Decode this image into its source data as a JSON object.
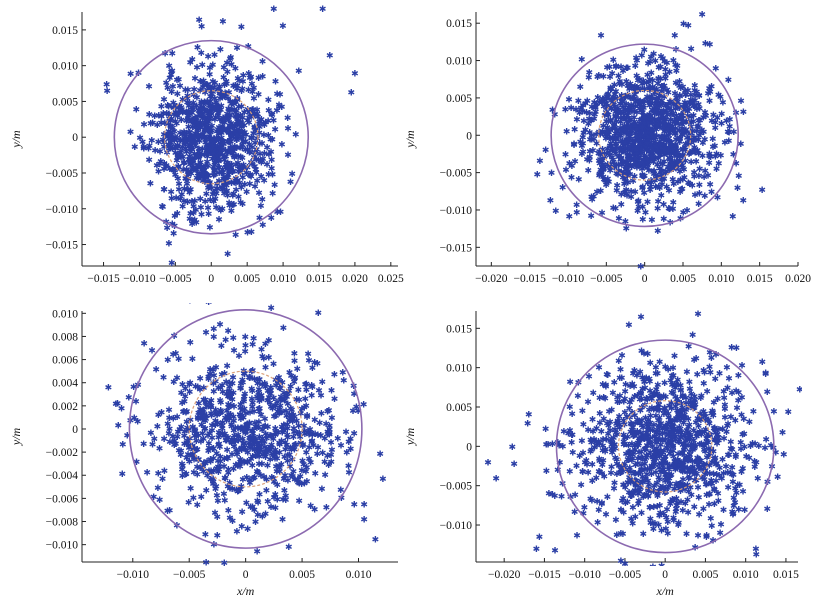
{
  "chart_data": [
    {
      "type": "scatter",
      "panel": "top-left",
      "xlabel": "",
      "ylabel": "y/m",
      "xlim": [
        -0.018,
        0.026
      ],
      "ylim": [
        -0.018,
        0.0175
      ],
      "xticks": [
        -0.015,
        -0.01,
        -0.005,
        0,
        0.005,
        0.01,
        0.015,
        0.02,
        0.025
      ],
      "xtick_labels": [
        "−0.015",
        "−0.010",
        "−0.005",
        "0",
        "0.005",
        "0.010",
        "0.015",
        "0.020",
        "0.025"
      ],
      "yticks": [
        0.015,
        0.01,
        0.005,
        0,
        -0.005,
        -0.01,
        -0.015
      ],
      "ytick_labels": [
        "0.015",
        "0.010",
        "0.005",
        "0",
        "−0.005",
        "−0.010",
        "−0.015"
      ],
      "center": [
        0.0,
        0.0
      ],
      "outer_circle_radius": 0.0135,
      "inner_circle_radius": 0.0065,
      "point_count": 900,
      "spread": [
        0.0042,
        0.0052
      ],
      "outliers": [
        [
          0.0155,
          0.018
        ],
        [
          0.0165,
          0.0115
        ],
        [
          0.02,
          0.009
        ],
        [
          0.0195,
          0.0063
        ],
        [
          -0.0145,
          0.0065
        ],
        [
          -0.0055,
          -0.0175
        ]
      ],
      "seed": 11
    },
    {
      "type": "scatter",
      "panel": "top-right",
      "xlabel": "",
      "ylabel": "y/m",
      "xlim": [
        -0.022,
        0.02
      ],
      "ylim": [
        -0.0175,
        0.0165
      ],
      "xticks": [
        -0.02,
        -0.015,
        -0.01,
        -0.005,
        0,
        0.005,
        0.01,
        0.015,
        0.02
      ],
      "xtick_labels": [
        "−0.020",
        "−0.015",
        "−0.010",
        "−0.005",
        "0",
        "0.005",
        "0.010",
        "0.015",
        "0.020"
      ],
      "yticks": [
        0.015,
        0.01,
        0.005,
        0,
        -0.005,
        -0.01,
        -0.015
      ],
      "ytick_labels": [
        "0.015",
        "0.010",
        "0.005",
        "0",
        "−0.005",
        "−0.010",
        "−0.015"
      ],
      "center": [
        0.0,
        0.0
      ],
      "outer_circle_radius": 0.0122,
      "inner_circle_radius": 0.006,
      "point_count": 1100,
      "spread": [
        0.0045,
        0.0045
      ],
      "outliers": [
        [
          0.0075,
          0.0162
        ],
        [
          0.0085,
          0.0122
        ],
        [
          -0.014,
          -0.0052
        ],
        [
          0.0115,
          -0.0108
        ],
        [
          -0.0005,
          -0.0175
        ]
      ],
      "seed": 23
    },
    {
      "type": "scatter",
      "panel": "bottom-left",
      "xlabel": "x/m",
      "ylabel": "y/m",
      "xlim": [
        -0.0145,
        0.0135
      ],
      "ylim": [
        -0.0115,
        0.0102
      ],
      "xticks": [
        -0.01,
        -0.005,
        0,
        0.005,
        0.01
      ],
      "xtick_labels": [
        "−0.010",
        "−0.005",
        "0",
        "0.005",
        "0.010"
      ],
      "yticks": [
        0.01,
        0.008,
        0.006,
        0.004,
        0.002,
        0,
        -0.002,
        -0.004,
        -0.006,
        -0.008,
        -0.01
      ],
      "ytick_labels": [
        "0.010",
        "0.008",
        "0.006",
        "0.004",
        "0.002",
        "0",
        "−0.002",
        "−0.004",
        "−0.006",
        "−0.008",
        "−0.010"
      ],
      "center": [
        0.0,
        0.0
      ],
      "outer_circle_radius": 0.0103,
      "inner_circle_radius": 0.005,
      "point_count": 800,
      "spread": [
        0.0042,
        0.0036
      ],
      "outliers": [
        [
          -0.0115,
          0.0022
        ],
        [
          -0.011,
          0.0018
        ],
        [
          0.0105,
          -0.0065
        ],
        [
          0.0115,
          -0.0095
        ],
        [
          -0.0035,
          -0.0115
        ],
        [
          0.0105,
          -0.0078
        ]
      ],
      "seed": 37
    },
    {
      "type": "scatter",
      "panel": "bottom-right",
      "xlabel": "x/m",
      "ylabel": "y/m",
      "xlim": [
        -0.0235,
        0.0165
      ],
      "ylim": [
        -0.0147,
        0.0172
      ],
      "xticks": [
        -0.02,
        -0.015,
        -0.01,
        -0.005,
        0,
        0.005,
        0.01,
        0.015
      ],
      "xtick_labels": [
        "−0.020",
        "−0.015",
        "−0.010",
        "−0.005",
        "0",
        "0.005",
        "0.010",
        "0.015"
      ],
      "yticks": [
        0.015,
        0.01,
        0.005,
        0,
        -0.005,
        -0.01
      ],
      "ytick_labels": [
        "0.015",
        "0.010",
        "0.005",
        "0",
        "−0.005",
        "−0.010"
      ],
      "center": [
        0.0,
        0.0
      ],
      "outer_circle_radius": 0.0135,
      "inner_circle_radius": 0.0058,
      "point_count": 1000,
      "spread": [
        0.0055,
        0.0052
      ],
      "outliers": [
        [
          -0.022,
          -0.002
        ],
        [
          -0.019,
          0.0
        ],
        [
          -0.016,
          -0.013
        ],
        [
          -0.003,
          0.0165
        ],
        [
          -0.0045,
          0.0155
        ],
        [
          0.0135,
          0.0045
        ],
        [
          -0.0055,
          -0.0145
        ],
        [
          -0.021,
          -0.004
        ]
      ],
      "seed": 53
    }
  ]
}
